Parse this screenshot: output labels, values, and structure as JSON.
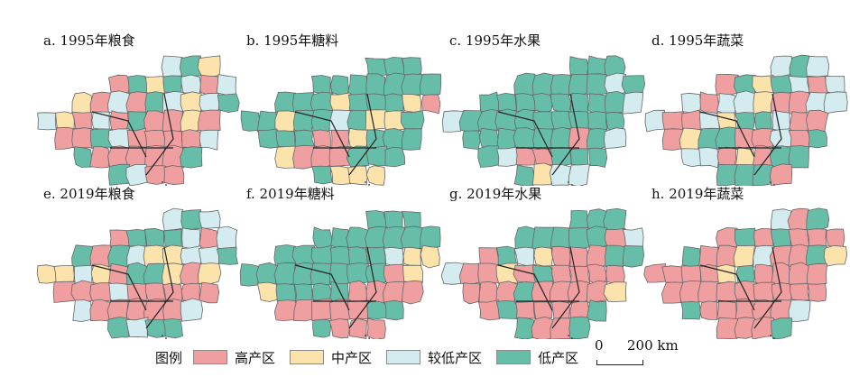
{
  "colors": {
    "high": "#ef9fa0",
    "mid": "#fce3ac",
    "lowmid": "#d4ebf0",
    "low": "#66bea8",
    "border": "#666666"
  },
  "panels": [
    {
      "title": "a. 1995年粮食",
      "regions": [
        "lowmid",
        "low",
        "mid",
        "high",
        "low",
        "mid",
        "low",
        "lowmid",
        "high",
        "lowmid",
        "mid",
        "high",
        "lowmid",
        "high",
        "low",
        "lowmid",
        "mid",
        "lowmid",
        "low",
        "lowmid",
        "mid",
        "high",
        "lowmid",
        "high",
        "low",
        "high",
        "high",
        "mid",
        "high",
        "high",
        "high",
        "low",
        "lowmid",
        "high",
        "high",
        "high",
        "high",
        "lowmid",
        "low",
        "high",
        "high",
        "high",
        "high",
        "high",
        "low",
        "low",
        "lowmid",
        "high",
        "high",
        "low",
        "low",
        "low",
        "low",
        "low",
        "low"
      ]
    },
    {
      "title": "b. 1995年糖料",
      "regions": [
        "low",
        "low",
        "low",
        "low",
        "low",
        "low",
        "low",
        "low",
        "low",
        "low",
        "low",
        "low",
        "low",
        "mid",
        "low",
        "low",
        "low",
        "mid",
        "high",
        "low",
        "low",
        "mid",
        "low",
        "low",
        "lowmid",
        "low",
        "mid",
        "mid",
        "low",
        "low",
        "low",
        "low",
        "high",
        "high",
        "mid",
        "low",
        "low",
        "low",
        "mid",
        "high",
        "high",
        "high",
        "low",
        "low",
        "low",
        "low",
        "mid",
        "mid",
        "mid",
        "low",
        "low",
        "low",
        "low",
        "low",
        "low"
      ]
    },
    {
      "title": "c. 1995年水果",
      "regions": [
        "low",
        "low",
        "low",
        "low",
        "low",
        "low",
        "low",
        "low",
        "lowmid",
        "low",
        "low",
        "low",
        "low",
        "low",
        "low",
        "low",
        "low",
        "low",
        "lowmid",
        "lowmid",
        "low",
        "low",
        "low",
        "low",
        "low",
        "low",
        "low",
        "low",
        "low",
        "low",
        "low",
        "low",
        "low",
        "low",
        "low",
        "high",
        "low",
        "lowmid",
        "low",
        "lowmid",
        "high",
        "high",
        "low",
        "low",
        "low",
        "low",
        "mid",
        "lowmid",
        "lowmid",
        "low",
        "low",
        "low",
        "low",
        "low",
        "low"
      ]
    },
    {
      "title": "d. 1995年蔬菜",
      "regions": [
        "lowmid",
        "low",
        "lowmid",
        "high",
        "low",
        "mid",
        "low",
        "lowmid",
        "high",
        "lowmid",
        "lowmid",
        "high",
        "lowmid",
        "lowmid",
        "mid",
        "high",
        "high",
        "lowmid",
        "lowmid",
        "lowmid",
        "high",
        "high",
        "lowmid",
        "mid",
        "low",
        "low",
        "lowmid",
        "high",
        "high",
        "high",
        "mid",
        "low",
        "low",
        "high",
        "high",
        "lowmid",
        "high",
        "low",
        "lowmid",
        "lowmid",
        "high",
        "mid",
        "high",
        "low",
        "low",
        "low",
        "low",
        "low",
        "high",
        "high",
        "low",
        "low",
        "low",
        "low",
        "low"
      ]
    },
    {
      "title": "e. 2019年粮食",
      "regions": [
        "lowmid",
        "low",
        "lowmid",
        "high",
        "low",
        "low",
        "low",
        "lowmid",
        "high",
        "lowmid",
        "low",
        "high",
        "low",
        "lowmid",
        "mid",
        "mid",
        "lowmid",
        "lowmid",
        "low",
        "mid",
        "mid",
        "lowmid",
        "mid",
        "high",
        "low",
        "low",
        "mid",
        "high",
        "mid",
        "high",
        "high",
        "high",
        "lowmid",
        "high",
        "high",
        "high",
        "high",
        "high",
        "lowmid",
        "high",
        "high",
        "high",
        "high",
        "high",
        "lowmid",
        "low",
        "lowmid",
        "low",
        "low",
        "low",
        "low",
        "low",
        "low",
        "low",
        "low"
      ]
    },
    {
      "title": "f. 2019年糖料",
      "regions": [
        "low",
        "low",
        "low",
        "low",
        "low",
        "low",
        "low",
        "low",
        "low",
        "low",
        "low",
        "low",
        "low",
        "low",
        "low",
        "low",
        "lowmid",
        "mid",
        "mid",
        "low",
        "low",
        "low",
        "low",
        "low",
        "low",
        "low",
        "low",
        "high",
        "mid",
        "mid",
        "low",
        "low",
        "low",
        "low",
        "high",
        "high",
        "high",
        "high",
        "high",
        "high",
        "high",
        "high",
        "high",
        "low",
        "low",
        "low",
        "high",
        "high",
        "high",
        "low",
        "low",
        "low",
        "low",
        "low",
        "low"
      ]
    },
    {
      "title": "g. 2019年水果",
      "regions": [
        "low",
        "low",
        "low",
        "low",
        "low",
        "low",
        "low",
        "low",
        "high",
        "lowmid",
        "high",
        "low",
        "lowmid",
        "mid",
        "high",
        "high",
        "high",
        "low",
        "low",
        "lowmid",
        "high",
        "high",
        "mid",
        "high",
        "low",
        "high",
        "high",
        "high",
        "high",
        "high",
        "high",
        "high",
        "low",
        "high",
        "high",
        "high",
        "high",
        "mid",
        "high",
        "low",
        "high",
        "high",
        "high",
        "high",
        "low",
        "low",
        "high",
        "high",
        "low",
        "low",
        "high",
        "low",
        "low",
        "low",
        "low"
      ]
    },
    {
      "title": "h. 2019年蔬菜",
      "regions": [
        "lowmid",
        "high",
        "low",
        "high",
        "low",
        "high",
        "low",
        "high",
        "high",
        "high",
        "low",
        "high",
        "high",
        "mid",
        "lowmid",
        "high",
        "high",
        "low",
        "mid",
        "high",
        "high",
        "high",
        "high",
        "mid",
        "low",
        "high",
        "high",
        "high",
        "high",
        "high",
        "high",
        "high",
        "high",
        "high",
        "high",
        "high",
        "high",
        "high",
        "low",
        "high",
        "high",
        "high",
        "high",
        "high",
        "lowmid",
        "high",
        "high",
        "high",
        "low",
        "low",
        "low",
        "low",
        "low",
        "low",
        "low"
      ]
    }
  ],
  "legend": {
    "title": "图例",
    "items": [
      {
        "key": "high",
        "label": "高产区"
      },
      {
        "key": "mid",
        "label": "中产区"
      },
      {
        "key": "lowmid",
        "label": "较低产区"
      },
      {
        "key": "low",
        "label": "低产区"
      }
    ]
  },
  "scalebar": {
    "zero": "0",
    "label": "200 km"
  }
}
